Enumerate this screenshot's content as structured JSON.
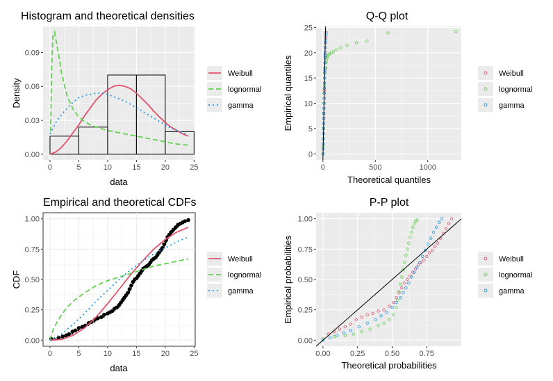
{
  "colors": {
    "weibull": "#df536b",
    "lognormal": "#61d04f",
    "gamma": "#2297e6",
    "panel_bg": "#ebebeb",
    "grid": "#ffffff"
  },
  "chart_data": [
    {
      "id": "hist",
      "type": "histogram",
      "title": "Histogram and theoretical densities",
      "xlabel": "data",
      "ylabel": "Density",
      "xlim": [
        -1.2,
        25.2
      ],
      "ylim": [
        -0.005,
        0.113
      ],
      "xticks": [
        0,
        5,
        10,
        15,
        20,
        25
      ],
      "yticks": [
        0.0,
        0.03,
        0.06,
        0.09
      ],
      "ytick_labels": [
        "0.00",
        "0.03",
        "0.06",
        "0.09"
      ],
      "bins": [
        [
          0,
          5,
          0.016
        ],
        [
          5,
          10,
          0.024
        ],
        [
          10,
          15,
          0.07
        ],
        [
          15,
          20,
          0.07
        ],
        [
          20,
          25,
          0.02
        ]
      ],
      "series": [
        {
          "name": "Weibull",
          "color_key": "weibull",
          "dash": "none",
          "x": [
            0,
            1,
            2,
            3,
            4,
            5,
            6,
            7,
            8,
            9,
            10,
            11,
            12,
            13,
            14,
            15,
            16,
            17,
            18,
            19,
            20,
            21,
            22,
            23,
            24
          ],
          "y": [
            0.0,
            0.002,
            0.006,
            0.012,
            0.019,
            0.026,
            0.034,
            0.041,
            0.048,
            0.053,
            0.057,
            0.06,
            0.061,
            0.06,
            0.058,
            0.054,
            0.049,
            0.044,
            0.038,
            0.033,
            0.028,
            0.024,
            0.021,
            0.018,
            0.016
          ]
        },
        {
          "name": "lognormal",
          "color_key": "lognormal",
          "dash": "7,4",
          "x": [
            0.1,
            0.3,
            0.5,
            0.8,
            1.0,
            1.5,
            2,
            3,
            4,
            5,
            6,
            7,
            8,
            10,
            12,
            14,
            16,
            18,
            20,
            22,
            24
          ],
          "y": [
            0.02,
            0.075,
            0.104,
            0.108,
            0.102,
            0.088,
            0.072,
            0.051,
            0.04,
            0.033,
            0.029,
            0.026,
            0.024,
            0.021,
            0.019,
            0.017,
            0.015,
            0.013,
            0.011,
            0.009,
            0.008
          ]
        },
        {
          "name": "gamma",
          "color_key": "gamma",
          "dash": "2,4",
          "x": [
            0,
            1,
            2,
            3,
            4,
            5,
            6,
            7,
            8,
            9,
            10,
            11,
            12,
            13,
            14,
            15,
            16,
            17,
            18,
            19,
            20,
            21,
            22,
            23,
            24
          ],
          "y": [
            0.018,
            0.028,
            0.035,
            0.041,
            0.046,
            0.05,
            0.052,
            0.053,
            0.054,
            0.054,
            0.053,
            0.051,
            0.049,
            0.047,
            0.044,
            0.041,
            0.038,
            0.035,
            0.032,
            0.029,
            0.026,
            0.023,
            0.021,
            0.019,
            0.017
          ]
        }
      ]
    },
    {
      "id": "qq",
      "type": "scatter",
      "title": "Q-Q plot",
      "xlabel": "Theoretical quantiles",
      "ylabel": "Empirical quantiles",
      "xlim": [
        -65,
        1320
      ],
      "ylim": [
        -1.2,
        25.2
      ],
      "xticks": [
        0,
        500,
        1000
      ],
      "yticks": [
        0,
        5,
        10,
        15,
        20,
        25
      ],
      "reference_line": "y = x",
      "series": [
        {
          "name": "Weibull",
          "color_key": "weibull",
          "x": [
            0.6,
            2,
            3,
            4,
            5,
            6,
            7,
            8,
            9,
            10,
            11,
            12,
            12.5,
            13,
            14,
            15,
            16,
            17,
            18,
            19,
            20,
            21,
            22,
            23,
            24,
            26,
            28,
            30
          ],
          "y": [
            0,
            1,
            2,
            3,
            4,
            5,
            6,
            7,
            8,
            9,
            10,
            11,
            12,
            12.5,
            13,
            14,
            15,
            16,
            16.5,
            17,
            18,
            19,
            19.5,
            20,
            21,
            22,
            23,
            24
          ]
        },
        {
          "name": "lognormal",
          "color_key": "lognormal",
          "x": [
            0.2,
            1,
            2,
            3,
            5,
            7,
            10,
            13,
            16,
            20,
            25,
            30,
            35,
            40,
            45,
            55,
            65,
            80,
            100,
            130,
            170,
            230,
            320,
            420,
            620,
            1270
          ],
          "y": [
            0,
            1.5,
            3,
            5,
            8,
            10,
            12,
            13.5,
            15,
            16,
            17,
            18,
            18.5,
            19,
            19.3,
            19.6,
            19.8,
            20,
            20.2,
            20.6,
            21,
            21.5,
            22,
            22.3,
            23.9,
            24.2
          ]
        },
        {
          "name": "gamma",
          "color_key": "gamma",
          "x": [
            1,
            2,
            3,
            4,
            5,
            6,
            7,
            8,
            9,
            10,
            11,
            12,
            13,
            14,
            15,
            16,
            17,
            18,
            19,
            20,
            21,
            22,
            23,
            24,
            25,
            27,
            29,
            31
          ],
          "y": [
            0,
            1,
            2,
            3,
            4,
            5,
            6,
            7,
            8,
            9,
            10,
            11,
            12,
            13,
            14,
            15,
            16,
            16.5,
            17,
            18,
            19,
            19.5,
            20,
            21,
            22,
            22.5,
            23.5,
            24
          ]
        }
      ]
    },
    {
      "id": "cdf",
      "type": "line",
      "title": "Empirical and theoretical CDFs",
      "xlabel": "data",
      "ylabel": "CDF",
      "xlim": [
        -1.2,
        25.2
      ],
      "ylim": [
        -0.05,
        1.05
      ],
      "xticks": [
        0,
        5,
        10,
        15,
        20,
        25
      ],
      "yticks": [
        0.0,
        0.25,
        0.5,
        0.75,
        1.0
      ],
      "ytick_labels": [
        "0.00",
        "0.25",
        "0.50",
        "0.75",
        "1.00"
      ],
      "empirical": {
        "x": [
          0.2,
          1.5,
          2.2,
          2.8,
          3.3,
          3.9,
          4.4,
          5.0,
          5.6,
          6.1,
          6.7,
          7.2,
          7.8,
          8.3,
          8.9,
          9.4,
          10.0,
          10.4,
          10.8,
          11.2,
          11.6,
          12.0,
          12.3,
          12.6,
          12.9,
          13.2,
          13.5,
          13.8,
          14.1,
          14.4,
          14.7,
          15.0,
          15.3,
          15.6,
          15.9,
          16.2,
          16.5,
          16.8,
          17.1,
          17.4,
          17.7,
          18.0,
          18.3,
          18.6,
          18.9,
          19.2,
          19.5,
          19.8,
          20.1,
          20.4,
          20.7,
          21.0,
          21.4,
          21.8,
          22.2,
          22.6,
          23.0,
          23.4,
          24.0
        ],
        "y": [
          0.01,
          0.02,
          0.03,
          0.04,
          0.05,
          0.07,
          0.08,
          0.1,
          0.11,
          0.12,
          0.14,
          0.15,
          0.17,
          0.18,
          0.19,
          0.21,
          0.22,
          0.23,
          0.24,
          0.26,
          0.27,
          0.29,
          0.31,
          0.33,
          0.35,
          0.37,
          0.39,
          0.42,
          0.45,
          0.48,
          0.5,
          0.51,
          0.53,
          0.55,
          0.57,
          0.59,
          0.6,
          0.61,
          0.62,
          0.64,
          0.66,
          0.67,
          0.68,
          0.7,
          0.72,
          0.74,
          0.76,
          0.79,
          0.82,
          0.85,
          0.87,
          0.89,
          0.91,
          0.93,
          0.95,
          0.96,
          0.97,
          0.98,
          0.99
        ]
      },
      "series": [
        {
          "name": "Weibull",
          "color_key": "weibull",
          "dash": "none",
          "x": [
            0,
            2,
            4,
            6,
            8,
            10,
            12,
            14,
            16,
            18,
            20,
            22,
            24
          ],
          "y": [
            0.0,
            0.006,
            0.04,
            0.1,
            0.19,
            0.3,
            0.42,
            0.54,
            0.65,
            0.75,
            0.83,
            0.89,
            0.93
          ]
        },
        {
          "name": "lognormal",
          "color_key": "lognormal",
          "dash": "7,4",
          "x": [
            0,
            0.5,
            1,
            2,
            3,
            4,
            6,
            8,
            10,
            12,
            14,
            16,
            18,
            20,
            22,
            24
          ],
          "y": [
            0.0,
            0.08,
            0.13,
            0.21,
            0.27,
            0.32,
            0.39,
            0.45,
            0.49,
            0.52,
            0.55,
            0.58,
            0.61,
            0.63,
            0.65,
            0.67
          ]
        },
        {
          "name": "gamma",
          "color_key": "gamma",
          "dash": "2,4",
          "x": [
            0,
            2,
            4,
            6,
            8,
            10,
            12,
            14,
            16,
            18,
            20,
            22,
            24
          ],
          "y": [
            0.0,
            0.05,
            0.13,
            0.22,
            0.32,
            0.41,
            0.5,
            0.58,
            0.65,
            0.71,
            0.76,
            0.81,
            0.85
          ]
        }
      ]
    },
    {
      "id": "pp",
      "type": "scatter",
      "title": "P-P plot",
      "xlabel": "Theoretical probabilities",
      "ylabel": "Empirical probabilities",
      "xlim": [
        -0.05,
        1.0
      ],
      "ylim": [
        -0.05,
        1.05
      ],
      "xticks": [
        0.0,
        0.25,
        0.5,
        0.75
      ],
      "xtick_labels": [
        "0.00",
        "0.25",
        "0.50",
        "0.75"
      ],
      "yticks": [
        0.0,
        0.25,
        0.5,
        0.75,
        1.0
      ],
      "ytick_labels": [
        "0.00",
        "0.25",
        "0.50",
        "0.75",
        "1.00"
      ],
      "reference_line": "y = x",
      "series": [
        {
          "name": "Weibull",
          "color_key": "weibull",
          "x": [
            0.0,
            0.04,
            0.08,
            0.12,
            0.16,
            0.2,
            0.24,
            0.28,
            0.32,
            0.36,
            0.4,
            0.44,
            0.48,
            0.51,
            0.53,
            0.55,
            0.57,
            0.59,
            0.61,
            0.63,
            0.65,
            0.67,
            0.69,
            0.71,
            0.73,
            0.75,
            0.77,
            0.79,
            0.81,
            0.83,
            0.85,
            0.87,
            0.89,
            0.91,
            0.93
          ],
          "y": [
            0.01,
            0.05,
            0.07,
            0.09,
            0.11,
            0.13,
            0.17,
            0.19,
            0.21,
            0.22,
            0.24,
            0.25,
            0.28,
            0.31,
            0.35,
            0.39,
            0.43,
            0.47,
            0.5,
            0.53,
            0.56,
            0.59,
            0.62,
            0.64,
            0.66,
            0.69,
            0.72,
            0.74,
            0.77,
            0.8,
            0.84,
            0.88,
            0.92,
            0.96,
            1.0
          ]
        },
        {
          "name": "lognormal",
          "color_key": "lognormal",
          "x": [
            0.0,
            0.08,
            0.16,
            0.22,
            0.28,
            0.34,
            0.4,
            0.44,
            0.48,
            0.51,
            0.53,
            0.54,
            0.55,
            0.56,
            0.57,
            0.58,
            0.59,
            0.6,
            0.61,
            0.62,
            0.63,
            0.64,
            0.65,
            0.66,
            0.67,
            0.68
          ],
          "y": [
            0.01,
            0.03,
            0.04,
            0.05,
            0.07,
            0.09,
            0.12,
            0.14,
            0.17,
            0.21,
            0.27,
            0.33,
            0.4,
            0.46,
            0.52,
            0.58,
            0.64,
            0.7,
            0.75,
            0.8,
            0.85,
            0.89,
            0.93,
            0.96,
            0.98,
            0.99
          ]
        },
        {
          "name": "gamma",
          "color_key": "gamma",
          "x": [
            0.0,
            0.05,
            0.1,
            0.15,
            0.2,
            0.26,
            0.32,
            0.38,
            0.42,
            0.46,
            0.5,
            0.53,
            0.56,
            0.58,
            0.6,
            0.62,
            0.64,
            0.66,
            0.68,
            0.7,
            0.72,
            0.74,
            0.76,
            0.78,
            0.8,
            0.82,
            0.84,
            0.86
          ],
          "y": [
            0.0,
            0.02,
            0.04,
            0.06,
            0.08,
            0.11,
            0.14,
            0.17,
            0.2,
            0.23,
            0.27,
            0.31,
            0.35,
            0.39,
            0.43,
            0.47,
            0.52,
            0.56,
            0.6,
            0.64,
            0.69,
            0.74,
            0.79,
            0.84,
            0.89,
            0.93,
            0.97,
            1.0
          ]
        }
      ]
    }
  ],
  "legends": [
    {
      "panel": "hist",
      "style": "line",
      "items": [
        "Weibull",
        "lognormal",
        "gamma"
      ]
    },
    {
      "panel": "qq",
      "style": "point",
      "items": [
        "Weibull",
        "lognormal",
        "gamma"
      ]
    },
    {
      "panel": "cdf",
      "style": "line",
      "items": [
        "Weibull",
        "lognormal",
        "gamma"
      ]
    },
    {
      "panel": "pp",
      "style": "point",
      "items": [
        "Weibull",
        "lognormal",
        "gamma"
      ]
    }
  ]
}
